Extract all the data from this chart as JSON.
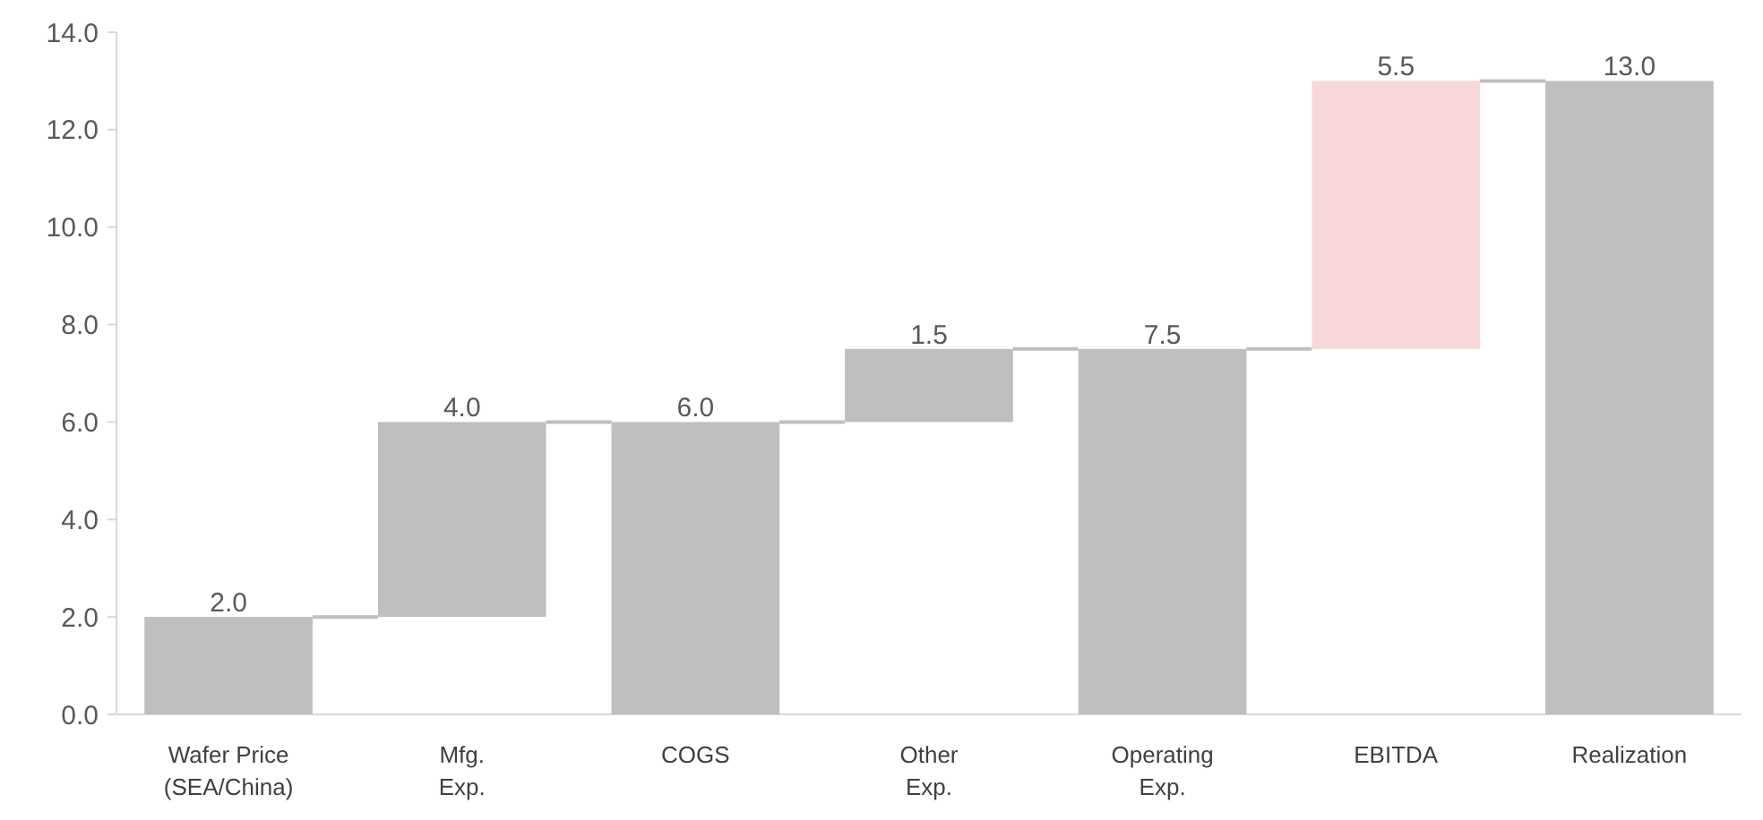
{
  "chart_data": {
    "type": "bar",
    "categories": [
      "Wafer Price\n(SEA/China)",
      "Mfg.\nExp.",
      "COGS",
      "Other\nExp.",
      "Operating\nExp.",
      "EBITDA",
      "Realization"
    ],
    "values": [
      2.0,
      4.0,
      6.0,
      1.5,
      7.5,
      5.5,
      13.0
    ],
    "base": [
      0,
      2.0,
      0,
      6.0,
      0,
      7.5,
      0
    ],
    "colors": [
      "#bfbfbf",
      "#bfbfbf",
      "#bfbfbf",
      "#bfbfbf",
      "#bfbfbf",
      "#f8d7da",
      "#bfbfbf"
    ],
    "value_labels": [
      "2.0",
      "4.0",
      "6.0",
      "1.5",
      "7.5",
      "5.5",
      "13.0"
    ],
    "ylim": [
      0,
      14
    ],
    "yticks": [
      {
        "value": 0,
        "label": "0.0"
      },
      {
        "value": 2,
        "label": "2.0"
      },
      {
        "value": 4,
        "label": "4.0"
      },
      {
        "value": 6,
        "label": "6.0"
      },
      {
        "value": 8,
        "label": "8.0"
      },
      {
        "value": 10,
        "label": "10.0"
      },
      {
        "value": 12,
        "label": "12.0"
      },
      {
        "value": 14,
        "label": "14.0"
      }
    ],
    "grid": false
  }
}
